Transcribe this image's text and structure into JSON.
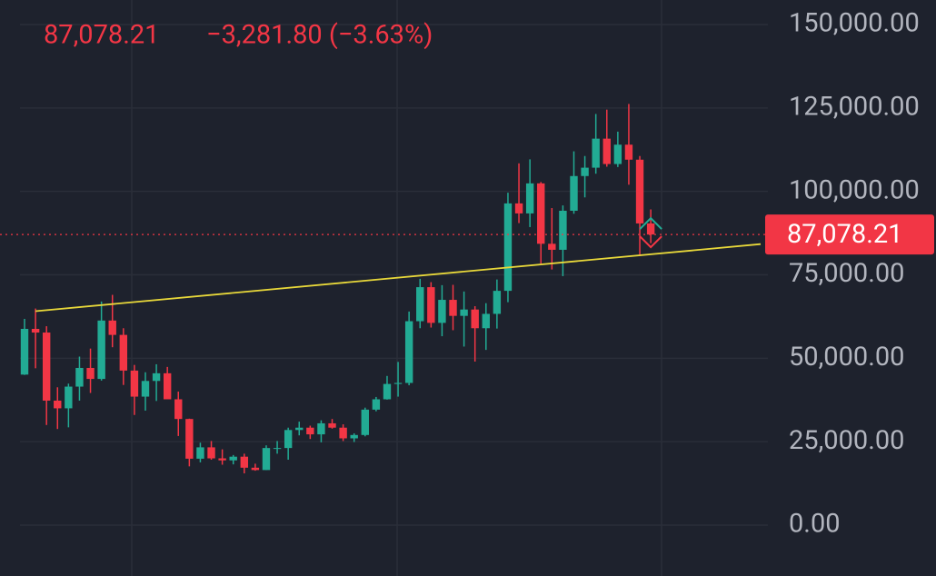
{
  "chart_data": {
    "type": "candlestick",
    "last_price": {
      "value": 87078.21,
      "label": "87,078.21"
    },
    "change_label": "−3,281.80 (−3.63%)",
    "up_color": "#22ab94",
    "down_color": "#f23645",
    "ylim": [
      -15250,
      157350
    ],
    "yticks": [
      {
        "value": 0,
        "label": "0.00"
      },
      {
        "value": 25000,
        "label": "25,000.00"
      },
      {
        "value": 50000,
        "label": "50,000.00"
      },
      {
        "value": 75000,
        "label": "75,000.00"
      },
      {
        "value": 100000,
        "label": "100,000.00"
      },
      {
        "value": 125000,
        "label": "125,000.00"
      },
      {
        "value": 150000,
        "label": "150,000.00"
      }
    ],
    "grid": true,
    "trendline": {
      "x": [
        1,
        67
      ],
      "y": [
        64100,
        84200
      ],
      "color": "#e8d83a"
    },
    "open": [
      45100,
      58800,
      57700,
      37300,
      35000,
      41500,
      47100,
      43800,
      61300,
      57000,
      46300,
      38500,
      43200,
      45500,
      37700,
      31800,
      19900,
      23300,
      20000,
      19400,
      20500,
      17200,
      16500,
      23100,
      23100,
      28500,
      29200,
      27200,
      30500,
      29200,
      26000,
      27000,
      34600,
      37700,
      42300,
      42600,
      61100,
      71300,
      60600,
      67500,
      62700,
      64600,
      59000,
      63300,
      70200,
      96400,
      93400,
      102400,
      84300,
      82500,
      94200,
      104600,
      107100,
      115800,
      108200,
      114000,
      109500,
      90400
    ],
    "high": [
      61800,
      64900,
      59600,
      41300,
      42400,
      50500,
      52900,
      67000,
      69000,
      59000,
      48000,
      45800,
      48200,
      47400,
      40000,
      31900,
      24700,
      25200,
      22700,
      21000,
      21400,
      18400,
      23900,
      25200,
      29200,
      31000,
      29800,
      31400,
      31800,
      30200,
      27500,
      35200,
      38400,
      44700,
      48900,
      64000,
      73800,
      72800,
      71900,
      72000,
      70000,
      65600,
      66500,
      73600,
      99600,
      108400,
      109600,
      102800,
      95000,
      95800,
      112000,
      110600,
      123200,
      124500,
      117900,
      126200,
      110600,
      94600
    ],
    "low": [
      45000,
      47000,
      30000,
      28800,
      29300,
      37300,
      39600,
      43300,
      53300,
      42000,
      33000,
      34300,
      37200,
      37700,
      26700,
      17600,
      18800,
      19600,
      18100,
      18200,
      15500,
      16300,
      16500,
      21400,
      19600,
      26900,
      25800,
      24800,
      28900,
      25200,
      24900,
      26600,
      34100,
      37600,
      38500,
      41900,
      59000,
      59200,
      56600,
      58400,
      53500,
      49000,
      52500,
      58900,
      66800,
      90500,
      89300,
      78300,
      76600,
      74600,
      93300,
      98200,
      105300,
      107400,
      107300,
      102000,
      80600,
      84500
    ],
    "close": [
      58800,
      57700,
      37300,
      35000,
      41500,
      47100,
      43800,
      61300,
      57000,
      46300,
      38500,
      43200,
      45500,
      37700,
      31800,
      19900,
      23300,
      20000,
      19400,
      20500,
      17200,
      16500,
      23100,
      23100,
      28500,
      29200,
      27200,
      30500,
      29200,
      26000,
      27000,
      34600,
      37700,
      42300,
      42600,
      61100,
      71300,
      60600,
      67500,
      62700,
      64600,
      59000,
      63300,
      70200,
      96400,
      93400,
      102400,
      84300,
      82500,
      94200,
      104600,
      107100,
      115800,
      108200,
      114000,
      109500,
      90400,
      87078.21
    ]
  }
}
